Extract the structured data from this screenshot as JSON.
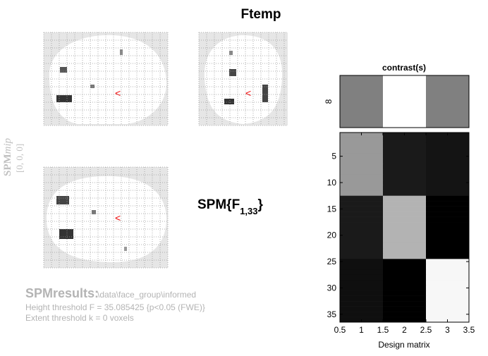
{
  "title": "Ftemp",
  "mip": {
    "label": "SPM",
    "label_suffix": "mip",
    "coords": "[0, 0, 0]"
  },
  "statistic": {
    "prefix": "SPM{F",
    "df": "1,33",
    "suffix": "}"
  },
  "contrast": {
    "title": "contrast(s)",
    "ytick": "8",
    "levels": [
      0.5,
      1,
      0.5
    ]
  },
  "design_matrix": {
    "xlabel": "Design matrix",
    "xlim": [
      0.5,
      3.5
    ],
    "ylim": [
      0.5,
      36.5
    ],
    "xticks": [
      0.5,
      1,
      1.5,
      2,
      2.5,
      3,
      3.5
    ],
    "yticks": [
      5,
      10,
      15,
      20,
      25,
      30,
      35
    ],
    "rows": [
      [
        0.6,
        0.1,
        0.08
      ],
      [
        0.6,
        0.1,
        0.08
      ],
      [
        0.6,
        0.1,
        0.08
      ],
      [
        0.6,
        0.1,
        0.08
      ],
      [
        0.6,
        0.1,
        0.08
      ],
      [
        0.6,
        0.1,
        0.08
      ],
      [
        0.6,
        0.1,
        0.08
      ],
      [
        0.6,
        0.1,
        0.08
      ],
      [
        0.6,
        0.1,
        0.08
      ],
      [
        0.6,
        0.1,
        0.08
      ],
      [
        0.6,
        0.1,
        0.08
      ],
      [
        0.6,
        0.1,
        0.08
      ],
      [
        0.1,
        0.7,
        0
      ],
      [
        0.1,
        0.7,
        0
      ],
      [
        0.1,
        0.7,
        0
      ],
      [
        0.1,
        0.7,
        0
      ],
      [
        0.1,
        0.7,
        0
      ],
      [
        0.1,
        0.7,
        0
      ],
      [
        0.1,
        0.7,
        0
      ],
      [
        0.1,
        0.7,
        0
      ],
      [
        0.1,
        0.7,
        0
      ],
      [
        0.1,
        0.7,
        0
      ],
      [
        0.1,
        0.7,
        0
      ],
      [
        0.1,
        0.7,
        0
      ],
      [
        0.06,
        0,
        0.97
      ],
      [
        0.06,
        0,
        0.97
      ],
      [
        0.06,
        0,
        0.97
      ],
      [
        0.06,
        0,
        0.97
      ],
      [
        0.06,
        0,
        0.97
      ],
      [
        0.06,
        0,
        0.97
      ],
      [
        0.06,
        0,
        0.97
      ],
      [
        0.06,
        0,
        0.97
      ],
      [
        0.06,
        0,
        0.97
      ],
      [
        0.06,
        0,
        0.97
      ],
      [
        0.06,
        0,
        0.97
      ],
      [
        0.06,
        0,
        0.97
      ]
    ]
  },
  "results": {
    "heading": "SPMresults:",
    "path": "\\data\\face_group\\informed",
    "height": "Height threshold F = 35.085425  {p<0.05 (FWE)}",
    "extent": "Extent threshold k = 0 voxels"
  }
}
